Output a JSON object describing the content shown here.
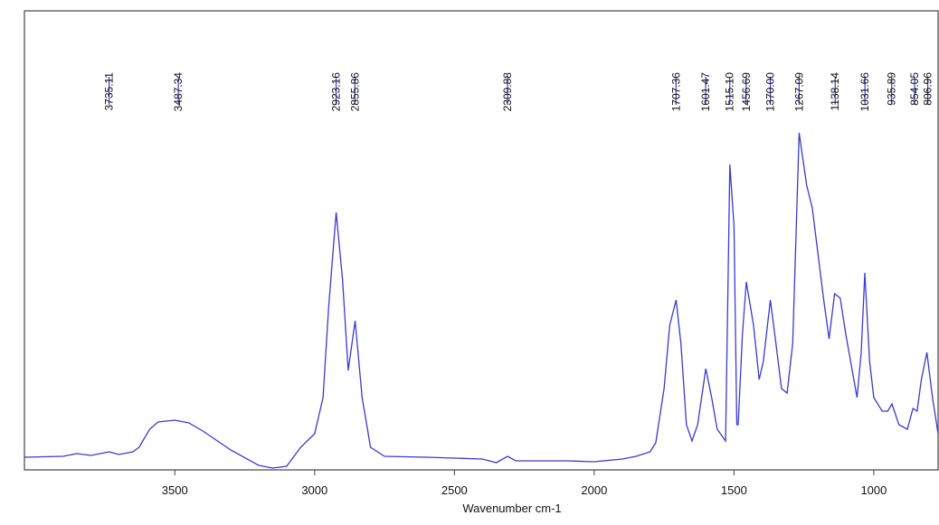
{
  "chart_data": {
    "type": "line",
    "x_label": "Wavenumber cm-1",
    "xlim": [
      4038,
      770
    ],
    "xticks": [
      3500,
      3000,
      2500,
      2000,
      1500,
      1000
    ],
    "ylim": [
      0,
      508
    ],
    "peaks": [
      {
        "value": 3735.11,
        "label": "3735.11"
      },
      {
        "value": 3487.34,
        "label": "3487.34"
      },
      {
        "value": 2923.16,
        "label": "2923.16"
      },
      {
        "value": 2855.86,
        "label": "2855.86"
      },
      {
        "value": 2309.88,
        "label": "2309.88"
      },
      {
        "value": 1707.36,
        "label": "1707.36"
      },
      {
        "value": 1601.47,
        "label": "1601.47"
      },
      {
        "value": 1515.1,
        "label": "1515.10"
      },
      {
        "value": 1456.69,
        "label": "1456.69"
      },
      {
        "value": 1370.0,
        "label": "1370.00"
      },
      {
        "value": 1267.09,
        "label": "1267.09"
      },
      {
        "value": 1138.14,
        "label": "1138.14"
      },
      {
        "value": 1031.66,
        "label": "1031.66"
      },
      {
        "value": 935.89,
        "label": "935.89"
      },
      {
        "value": 854.05,
        "label": "854.05"
      },
      {
        "value": 806.96,
        "label": "806.96"
      }
    ],
    "color": "#3a3ad0",
    "x": [
      4038,
      3900,
      3850,
      3800,
      3735,
      3700,
      3650,
      3628,
      3590,
      3560,
      3500,
      3450,
      3400,
      3300,
      3200,
      3150,
      3100,
      3050,
      3000,
      2970,
      2950,
      2923,
      2900,
      2880,
      2855,
      2830,
      2800,
      2750,
      2600,
      2500,
      2400,
      2350,
      2310,
      2280,
      2200,
      2100,
      2000,
      1900,
      1850,
      1800,
      1780,
      1750,
      1730,
      1707,
      1690,
      1670,
      1650,
      1630,
      1601,
      1580,
      1560,
      1530,
      1515,
      1500,
      1490,
      1485,
      1470,
      1456,
      1430,
      1410,
      1395,
      1370,
      1350,
      1330,
      1310,
      1290,
      1267,
      1240,
      1220,
      1200,
      1180,
      1160,
      1140,
      1120,
      1100,
      1080,
      1060,
      1045,
      1032,
      1015,
      1000,
      970,
      950,
      935,
      910,
      880,
      860,
      845,
      830,
      810,
      790,
      770
    ],
    "values": [
      14,
      15,
      18,
      16,
      20,
      17,
      20,
      25,
      45,
      53,
      55,
      52,
      43,
      22,
      5,
      2,
      4,
      25,
      40,
      80,
      180,
      285,
      210,
      110,
      165,
      80,
      25,
      15,
      14,
      13,
      12,
      8,
      15,
      10,
      10,
      10,
      9,
      12,
      15,
      20,
      30,
      90,
      160,
      188,
      140,
      50,
      32,
      50,
      112,
      80,
      45,
      32,
      338,
      270,
      50,
      50,
      150,
      208,
      160,
      100,
      120,
      188,
      140,
      90,
      85,
      140,
      373,
      315,
      290,
      240,
      190,
      145,
      195,
      190,
      150,
      115,
      80,
      130,
      218,
      120,
      80,
      65,
      65,
      73,
      50,
      45,
      68,
      65,
      100,
      130,
      80,
      40
    ]
  }
}
